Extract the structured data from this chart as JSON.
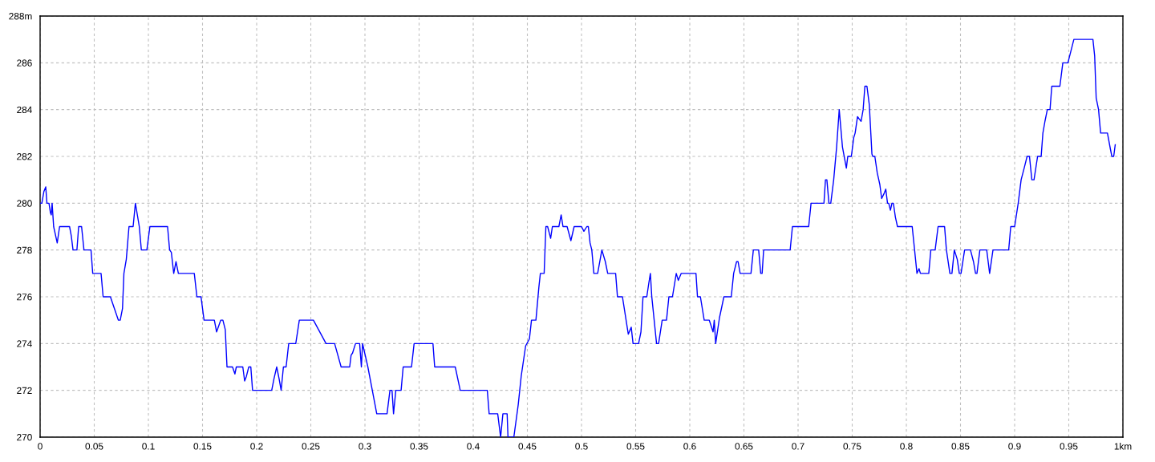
{
  "chart_data": {
    "type": "line",
    "color": "#0000ff",
    "grid": true,
    "xlim": [
      0,
      1
    ],
    "ylim": [
      270,
      288
    ],
    "xticks": [
      0,
      0.05,
      0.1,
      0.15,
      0.2,
      0.25,
      0.3,
      0.35,
      0.4,
      0.45,
      0.5,
      0.55,
      0.6,
      0.65,
      0.7,
      0.75,
      0.8,
      0.85,
      0.9,
      0.95,
      {
        "value": 1,
        "label": "1km"
      }
    ],
    "yticks": [
      270,
      272,
      274,
      276,
      278,
      280,
      282,
      284,
      286,
      {
        "value": 288,
        "label": "288m"
      }
    ],
    "x": [
      0.0,
      0.0016,
      0.0035,
      0.0052,
      0.0063,
      0.0082,
      0.0095,
      0.0103,
      0.0111,
      0.0125,
      0.0158,
      0.018,
      0.0272,
      0.0288,
      0.0304,
      0.034,
      0.0356,
      0.0383,
      0.0405,
      0.047,
      0.0486,
      0.0563,
      0.0582,
      0.0649,
      0.0723,
      0.074,
      0.0761,
      0.0774,
      0.0796,
      0.0821,
      0.0859,
      0.088,
      0.0916,
      0.0935,
      0.0986,
      0.1014,
      0.1177,
      0.1196,
      0.1212,
      0.1234,
      0.1255,
      0.1277,
      0.1424,
      0.1448,
      0.1486,
      0.1514,
      0.1609,
      0.163,
      0.1668,
      0.1688,
      0.171,
      0.1726,
      0.1777,
      0.1799,
      0.1812,
      0.1872,
      0.1889,
      0.1905,
      0.1927,
      0.1946,
      0.1962,
      0.2139,
      0.216,
      0.2185,
      0.2207,
      0.2226,
      0.2247,
      0.2272,
      0.2296,
      0.2361,
      0.2394,
      0.2524,
      0.2641,
      0.272,
      0.278,
      0.2859,
      0.2872,
      0.2886,
      0.2913,
      0.2951,
      0.2967,
      0.2978,
      0.3027,
      0.3068,
      0.3109,
      0.3204,
      0.3231,
      0.325,
      0.3264,
      0.3285,
      0.3334,
      0.3353,
      0.343,
      0.3454,
      0.3628,
      0.3644,
      0.3834,
      0.388,
      0.413,
      0.4147,
      0.4226,
      0.4253,
      0.4274,
      0.4313,
      0.4321,
      0.4375,
      0.4416,
      0.4443,
      0.4484,
      0.4519,
      0.4538,
      0.4579,
      0.4606,
      0.462,
      0.4655,
      0.4671,
      0.4687,
      0.4715,
      0.4731,
      0.4791,
      0.4812,
      0.4829,
      0.4867,
      0.4902,
      0.4932,
      0.5,
      0.5022,
      0.5049,
      0.5063,
      0.5079,
      0.5095,
      0.5114,
      0.5149,
      0.5188,
      0.522,
      0.5242,
      0.5315,
      0.5332,
      0.5378,
      0.5405,
      0.5432,
      0.5459,
      0.5476,
      0.5527,
      0.5549,
      0.5568,
      0.5603,
      0.5622,
      0.5636,
      0.5649,
      0.5671,
      0.5693,
      0.5712,
      0.5745,
      0.5785,
      0.5807,
      0.584,
      0.5875,
      0.5894,
      0.5921,
      0.6057,
      0.6071,
      0.6098,
      0.6133,
      0.618,
      0.6215,
      0.6226,
      0.6239,
      0.6274,
      0.6315,
      0.6383,
      0.6405,
      0.6432,
      0.6446,
      0.6465,
      0.6565,
      0.6587,
      0.6636,
      0.6655,
      0.6668,
      0.6682,
      0.6927,
      0.6948,
      0.7098,
      0.712,
      0.7239,
      0.7253,
      0.7266,
      0.7285,
      0.7302,
      0.7329,
      0.7356,
      0.738,
      0.741,
      0.7446,
      0.7459,
      0.7492,
      0.7514,
      0.7527,
      0.7549,
      0.7565,
      0.7582,
      0.7601,
      0.7617,
      0.7636,
      0.7658,
      0.7682,
      0.769,
      0.7709,
      0.7731,
      0.7755,
      0.7772,
      0.7793,
      0.781,
      0.7826,
      0.7837,
      0.7853,
      0.7867,
      0.788,
      0.7899,
      0.7918,
      0.8054,
      0.8076,
      0.8098,
      0.8117,
      0.813,
      0.8207,
      0.8226,
      0.8266,
      0.8293,
      0.8353,
      0.837,
      0.8402,
      0.8421,
      0.8443,
      0.847,
      0.8489,
      0.8505,
      0.8538,
      0.8592,
      0.862,
      0.8639,
      0.8652,
      0.8679,
      0.8742,
      0.8769,
      0.88,
      0.8945,
      0.8964,
      0.9,
      0.9033,
      0.906,
      0.9088,
      0.9115,
      0.9137,
      0.9159,
      0.9179,
      0.9212,
      0.9245,
      0.9261,
      0.928,
      0.9302,
      0.9327,
      0.9343,
      0.9418,
      0.9445,
      0.9492,
      0.9547,
      0.9723,
      0.9739,
      0.9753,
      0.9775,
      0.9794,
      0.9857,
      0.9885,
      0.9898,
      0.9915,
      0.9929
    ],
    "values": [
      280,
      280,
      280.5,
      280.7,
      280,
      280,
      279.6,
      279.5,
      280,
      279,
      278.3,
      279,
      279,
      278.6,
      278,
      278,
      279,
      279,
      278,
      278,
      277,
      277,
      276,
      276,
      275,
      275,
      275.5,
      277,
      277.6,
      279,
      279,
      280,
      279,
      278,
      278,
      279,
      279,
      278,
      277.9,
      277,
      277.5,
      277,
      277,
      276,
      276,
      275,
      275,
      274.5,
      275,
      275,
      274.6,
      273,
      273,
      272.7,
      273,
      273,
      272.4,
      272.6,
      273,
      273,
      272,
      272,
      272.5,
      273,
      272.5,
      272,
      273,
      273,
      274,
      274,
      275,
      275,
      274,
      274,
      273,
      273,
      273.5,
      273.6,
      274,
      274,
      273,
      274,
      273,
      272,
      271,
      271,
      272,
      272,
      271,
      272,
      272,
      273,
      273,
      274,
      274,
      273,
      273,
      272,
      272,
      271,
      271,
      270,
      271,
      271,
      270,
      270,
      271.4,
      272.6,
      273.9,
      274.2,
      275,
      275,
      276.4,
      277,
      277,
      279,
      279,
      278.5,
      279,
      279,
      279.5,
      279,
      279,
      278.4,
      279,
      279,
      278.8,
      279,
      279,
      278.3,
      278,
      277,
      277,
      278,
      277.5,
      277,
      277,
      276,
      276,
      275.2,
      274.4,
      274.7,
      274,
      274,
      274.5,
      276,
      276,
      276.6,
      277,
      276,
      275,
      274,
      274,
      275,
      275,
      276,
      276,
      277,
      276.7,
      277,
      277,
      276,
      276,
      275,
      275,
      274.5,
      275,
      274,
      275.1,
      276,
      276,
      277,
      277.5,
      277.5,
      277,
      277,
      278,
      278,
      277,
      277,
      278,
      278,
      279,
      279,
      280,
      280,
      281,
      281,
      280,
      280,
      281,
      282.4,
      284,
      282.4,
      281.5,
      282,
      282,
      282.8,
      283,
      283.7,
      283.6,
      283.5,
      284,
      285,
      285,
      284.2,
      282.1,
      282,
      282,
      281.3,
      280.8,
      280.2,
      280.4,
      280.6,
      280,
      280,
      279.7,
      280,
      280,
      279.4,
      279,
      279,
      278,
      277,
      277.2,
      277,
      277,
      278,
      278,
      279,
      279,
      278,
      277,
      277,
      278,
      277.6,
      277,
      277,
      278,
      278,
      277.5,
      277,
      277,
      278,
      278,
      277,
      278,
      278,
      279,
      279,
      280,
      281,
      281.5,
      282,
      282,
      281,
      281,
      282,
      282,
      283,
      283.5,
      284,
      284,
      285,
      285,
      286,
      286,
      287,
      287,
      286.3,
      284.5,
      284,
      283,
      283,
      282.3,
      282,
      282,
      282.5
    ]
  }
}
